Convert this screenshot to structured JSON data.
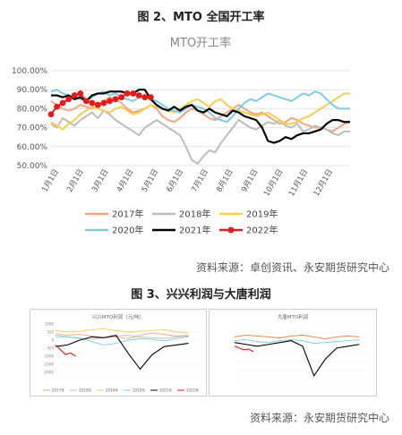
{
  "figure2": {
    "caption": "图 2、MTO 全国开工率",
    "source": "资料来源：卓创资讯、永安期货研究中心"
  },
  "figure3": {
    "caption": "图 3、兴兴利润与大唐利润",
    "source": "资料来源：永安期货研究中心"
  },
  "colors": {
    "2017": "#F4A582",
    "2018": "#BDBDBD",
    "2019": "#F5CE52",
    "2020": "#7ACBEA",
    "2021": "#000000",
    "2022": "#E41A1C"
  },
  "chart_data": [
    {
      "type": "line",
      "title": "MTO开工率",
      "xlabel": "",
      "ylabel": "",
      "x_ticks": [
        "1月1日",
        "2月1日",
        "3月1日",
        "4月1日",
        "5月1日",
        "6月1日",
        "7月1日",
        "8月1日",
        "9月1日",
        "10月1日",
        "11月1日",
        "12月1日"
      ],
      "y_ticks": [
        "50.00%",
        "60.00%",
        "70.00%",
        "80.00%",
        "90.00%",
        "100.00%"
      ],
      "ylim": [
        50,
        100
      ],
      "grid": true,
      "legend_position": "bottom",
      "x_unit": "week_of_year",
      "series": [
        {
          "name": "2017年",
          "x": [
            1,
            2,
            3,
            4,
            5,
            6,
            7,
            8,
            9,
            10,
            11,
            12,
            13,
            14,
            15,
            16,
            17,
            18,
            19,
            20,
            21,
            22,
            23,
            24,
            25,
            26,
            27,
            28,
            29,
            30,
            31,
            32,
            33,
            34,
            35,
            36,
            37,
            38,
            39,
            40,
            41,
            42,
            43,
            44,
            45,
            46,
            47,
            48,
            49,
            50,
            51,
            52
          ],
          "values": [
            84,
            82,
            80,
            79,
            80,
            82,
            81,
            80,
            82,
            84,
            86,
            85,
            83,
            80,
            78,
            79,
            80,
            82,
            80,
            76,
            74,
            73,
            75,
            78,
            80,
            79,
            77,
            75,
            74,
            76,
            78,
            80,
            82,
            80,
            78,
            77,
            78,
            76,
            74,
            72,
            73,
            75,
            74,
            72,
            71,
            70,
            70,
            69,
            68,
            70,
            72,
            73
          ]
        },
        {
          "name": "2018年",
          "x": [
            1,
            2,
            3,
            4,
            5,
            6,
            7,
            8,
            9,
            10,
            11,
            12,
            13,
            14,
            15,
            16,
            17,
            18,
            19,
            20,
            21,
            22,
            23,
            24,
            25,
            26,
            27,
            28,
            29,
            30,
            31,
            32,
            33,
            34,
            35,
            36,
            37,
            38,
            39,
            40,
            41,
            42,
            43,
            44,
            45,
            46,
            47,
            48,
            49,
            50,
            51,
            52
          ],
          "values": [
            72,
            70,
            75,
            73,
            71,
            74,
            76,
            78,
            75,
            79,
            77,
            74,
            72,
            70,
            68,
            66,
            70,
            72,
            74,
            72,
            70,
            68,
            66,
            60,
            53,
            51,
            55,
            58,
            57,
            62,
            66,
            70,
            74,
            72,
            70,
            69,
            71,
            73,
            72,
            74,
            71,
            70,
            72,
            68,
            69,
            71,
            70,
            69,
            67,
            66,
            68,
            68
          ]
        },
        {
          "name": "2019年",
          "x": [
            1,
            2,
            3,
            4,
            5,
            6,
            7,
            8,
            9,
            10,
            11,
            12,
            13,
            14,
            15,
            16,
            17,
            18,
            19,
            20,
            21,
            22,
            23,
            24,
            25,
            26,
            27,
            28,
            29,
            30,
            31,
            32,
            33,
            34,
            35,
            36,
            37,
            38,
            39,
            40,
            41,
            42,
            43,
            44,
            45,
            46,
            47,
            48,
            49,
            50,
            51,
            52
          ],
          "values": [
            73,
            71,
            69,
            72,
            74,
            77,
            79,
            81,
            80,
            79,
            78,
            80,
            81,
            79,
            77,
            78,
            80,
            82,
            81,
            80,
            79,
            78,
            80,
            82,
            84,
            85,
            83,
            81,
            84,
            85,
            82,
            80,
            79,
            78,
            77,
            76,
            77,
            78,
            76,
            74,
            72,
            72,
            73,
            75,
            76,
            78,
            80,
            82,
            84,
            86,
            88,
            88
          ]
        },
        {
          "name": "2020年",
          "x": [
            1,
            2,
            3,
            4,
            5,
            6,
            7,
            8,
            9,
            10,
            11,
            12,
            13,
            14,
            15,
            16,
            17,
            18,
            19,
            20,
            21,
            22,
            23,
            24,
            25,
            26,
            27,
            28,
            29,
            30,
            31,
            32,
            33,
            34,
            35,
            36,
            37,
            38,
            39,
            40,
            41,
            42,
            43,
            44,
            45,
            46,
            47,
            48,
            49,
            50,
            51,
            52
          ],
          "values": [
            89,
            90,
            88,
            87,
            86,
            85,
            84,
            86,
            88,
            89,
            87,
            88,
            86,
            85,
            84,
            86,
            87,
            85,
            84,
            82,
            80,
            79,
            78,
            80,
            82,
            81,
            80,
            78,
            75,
            74,
            73,
            76,
            80,
            83,
            85,
            84,
            86,
            88,
            87,
            86,
            85,
            84,
            86,
            88,
            87,
            89,
            88,
            85,
            82,
            80,
            80,
            80
          ]
        },
        {
          "name": "2021年",
          "x": [
            1,
            2,
            3,
            4,
            5,
            6,
            7,
            8,
            9,
            10,
            11,
            12,
            13,
            14,
            15,
            16,
            17,
            18,
            19,
            20,
            21,
            22,
            23,
            24,
            25,
            26,
            27,
            28,
            29,
            30,
            31,
            32,
            33,
            34,
            35,
            36,
            37,
            38,
            39,
            40,
            41,
            42,
            43,
            44,
            45,
            46,
            47,
            48,
            49,
            50,
            51,
            52
          ],
          "values": [
            87,
            87,
            86,
            87,
            85,
            86,
            84,
            87,
            88,
            88,
            89,
            89,
            89,
            88,
            88,
            90,
            90,
            85,
            82,
            80,
            79,
            81,
            79,
            81,
            82,
            79,
            78,
            80,
            78,
            77,
            76,
            79,
            78,
            76,
            75,
            74,
            70,
            63,
            62,
            63,
            65,
            64,
            66,
            67,
            67,
            68,
            69,
            72,
            74,
            74,
            73,
            73
          ]
        },
        {
          "name": "2022年",
          "x": [
            1,
            2,
            3,
            4,
            5,
            6,
            7,
            8,
            9,
            10,
            11,
            12,
            13,
            14,
            15,
            16,
            17,
            18
          ],
          "values": [
            77,
            81,
            83,
            85,
            87,
            88,
            84,
            83,
            82,
            83,
            84,
            85,
            86,
            88,
            88,
            87,
            86,
            86
          ]
        }
      ]
    },
    {
      "type": "line",
      "title": "兴兴MTO利润（元/吨）",
      "xlabel": "",
      "ylabel": "",
      "y_ticks": [
        "1000",
        "500",
        "0",
        "-500",
        "-1000",
        "-1500",
        "-2000"
      ],
      "ylim": [
        -2000,
        1000
      ],
      "series": [
        {
          "name": "2017年",
          "values": [
            400,
            300,
            350,
            250,
            150,
            200,
            100,
            300,
            450,
            350,
            250,
            300
          ]
        },
        {
          "name": "2019年",
          "values": [
            150,
            200,
            100,
            50,
            150,
            250,
            300,
            200,
            150,
            100,
            200,
            250
          ]
        },
        {
          "name": "2019年",
          "values": [
            600,
            500,
            550,
            650,
            700,
            600,
            500,
            550,
            600,
            650,
            500,
            450
          ]
        },
        {
          "name": "2020年",
          "values": [
            300,
            200,
            150,
            -100,
            -300,
            -200,
            0,
            100,
            50,
            -50,
            100,
            200
          ]
        },
        {
          "name": "2021年",
          "values": [
            -400,
            -300,
            0,
            200,
            150,
            300,
            -800,
            -1800,
            -900,
            -400,
            -300,
            -200
          ]
        },
        {
          "name": "2022年",
          "values": [
            -300,
            -600,
            -900,
            -800,
            -1000
          ]
        }
      ]
    },
    {
      "type": "line",
      "title": "大唐MTO利润",
      "xlabel": "",
      "ylabel": "",
      "series": [
        {
          "name": "",
          "values": [
            300,
            400,
            350,
            300,
            250,
            350,
            400,
            300,
            200,
            300,
            350,
            300
          ]
        },
        {
          "name": "",
          "values": [
            100,
            150,
            50,
            0,
            100,
            150,
            100,
            -50,
            0,
            50,
            100,
            150
          ]
        },
        {
          "name": "",
          "values": [
            0,
            -100,
            -200,
            -100,
            0,
            100,
            -200,
            -1800,
            -900,
            -300,
            -200,
            -100
          ]
        },
        {
          "name": "",
          "values": [
            -200,
            -300,
            -400,
            -350,
            -500
          ]
        }
      ]
    }
  ]
}
